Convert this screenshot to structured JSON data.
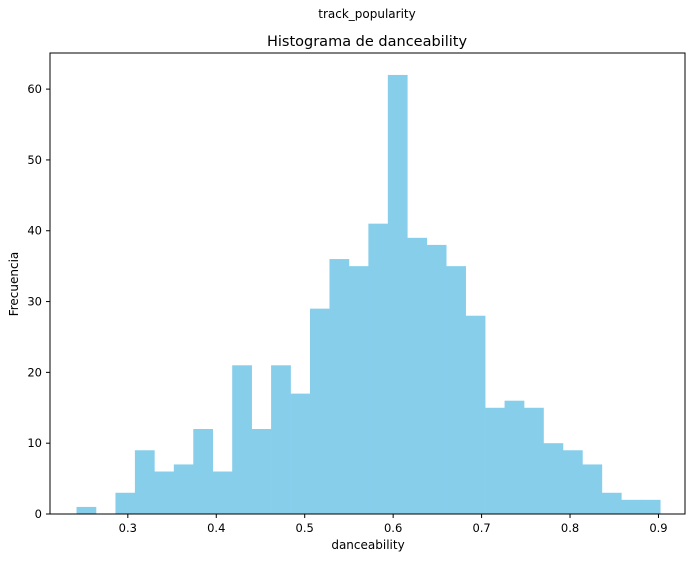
{
  "figure": {
    "suptitle": "track_popularity"
  },
  "chart_data": {
    "type": "bar",
    "title": "Histograma de danceability",
    "xlabel": "danceability",
    "ylabel": "Frecuencia",
    "bar_color": "#87CEEB",
    "xlim": [
      0.212,
      0.93
    ],
    "ylim": [
      0,
      65.1
    ],
    "xticks": [
      0.3,
      0.4,
      0.5,
      0.6,
      0.7,
      0.8,
      0.9
    ],
    "xtick_labels": [
      "0.3",
      "0.4",
      "0.5",
      "0.6",
      "0.7",
      "0.8",
      "0.9"
    ],
    "yticks": [
      0,
      10,
      20,
      30,
      40,
      50,
      60
    ],
    "ytick_labels": [
      "0",
      "10",
      "20",
      "30",
      "40",
      "50",
      "60"
    ],
    "bins": [
      {
        "x0": 0.242,
        "x1": 0.264,
        "count": 1
      },
      {
        "x0": 0.264,
        "x1": 0.286,
        "count": 0
      },
      {
        "x0": 0.286,
        "x1": 0.308,
        "count": 3
      },
      {
        "x0": 0.308,
        "x1": 0.33,
        "count": 9
      },
      {
        "x0": 0.33,
        "x1": 0.352,
        "count": 6
      },
      {
        "x0": 0.352,
        "x1": 0.374,
        "count": 7
      },
      {
        "x0": 0.374,
        "x1": 0.396,
        "count": 12
      },
      {
        "x0": 0.396,
        "x1": 0.418,
        "count": 6
      },
      {
        "x0": 0.418,
        "x1": 0.44,
        "count": 21
      },
      {
        "x0": 0.44,
        "x1": 0.462,
        "count": 12
      },
      {
        "x0": 0.462,
        "x1": 0.484,
        "count": 21
      },
      {
        "x0": 0.484,
        "x1": 0.506,
        "count": 17
      },
      {
        "x0": 0.506,
        "x1": 0.528,
        "count": 29
      },
      {
        "x0": 0.528,
        "x1": 0.55,
        "count": 36
      },
      {
        "x0": 0.55,
        "x1": 0.572,
        "count": 35
      },
      {
        "x0": 0.572,
        "x1": 0.594,
        "count": 41
      },
      {
        "x0": 0.594,
        "x1": 0.616,
        "count": 62
      },
      {
        "x0": 0.616,
        "x1": 0.638,
        "count": 39
      },
      {
        "x0": 0.638,
        "x1": 0.66,
        "count": 38
      },
      {
        "x0": 0.66,
        "x1": 0.682,
        "count": 35
      },
      {
        "x0": 0.682,
        "x1": 0.704,
        "count": 28
      },
      {
        "x0": 0.704,
        "x1": 0.726,
        "count": 15
      },
      {
        "x0": 0.726,
        "x1": 0.748,
        "count": 16
      },
      {
        "x0": 0.748,
        "x1": 0.77,
        "count": 15
      },
      {
        "x0": 0.77,
        "x1": 0.792,
        "count": 10
      },
      {
        "x0": 0.792,
        "x1": 0.814,
        "count": 9
      },
      {
        "x0": 0.814,
        "x1": 0.836,
        "count": 7
      },
      {
        "x0": 0.836,
        "x1": 0.858,
        "count": 3
      },
      {
        "x0": 0.858,
        "x1": 0.88,
        "count": 2
      },
      {
        "x0": 0.88,
        "x1": 0.902,
        "count": 2
      }
    ],
    "grid": false,
    "legend": "none"
  }
}
